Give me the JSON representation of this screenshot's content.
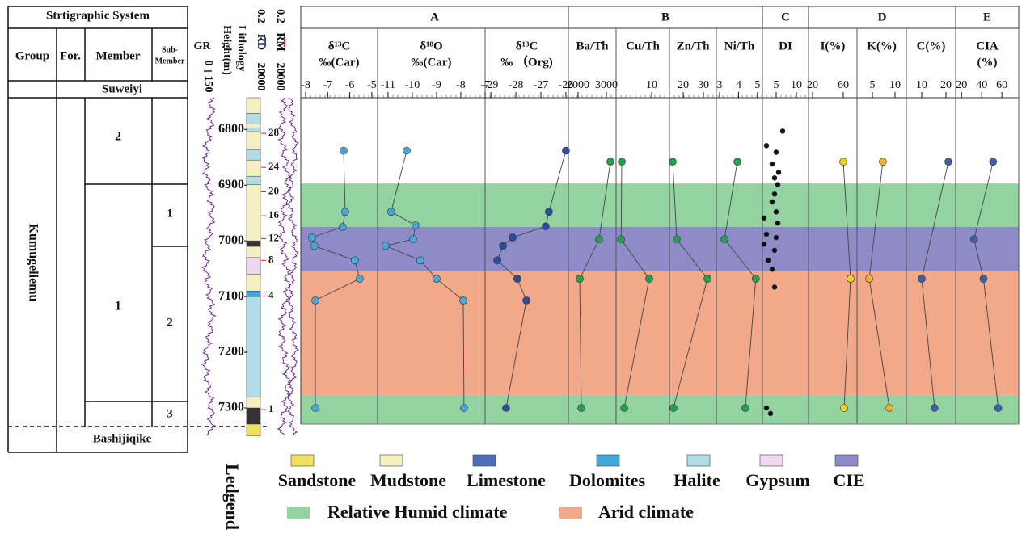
{
  "strat": {
    "title": "Strtigraphic System",
    "headers": [
      "Group",
      "For.",
      "Member",
      [
        "Sub-",
        "Member"
      ]
    ],
    "top": "Suweiyi",
    "bottom": "Bashijiqike",
    "group": "Kumugeliemu",
    "members": [
      "2",
      "1"
    ],
    "submembers": [
      "1",
      "2",
      "3"
    ]
  },
  "logs": {
    "gr": "GR",
    "gr_range": [
      0,
      150
    ],
    "height": "Height(m)",
    "lithology": "Lithology",
    "rd": "RD",
    "rm": "RM",
    "res_range": [
      0.2,
      20000
    ]
  },
  "chart_data": {
    "type": "line",
    "ylim": [
      6743,
      7329
    ],
    "yticks": [
      6800,
      6900,
      7000,
      7100,
      7200,
      7300
    ],
    "zones": [
      {
        "from": 6897,
        "to": 6975,
        "color": "#93d3a2"
      },
      {
        "from": 6975,
        "to": 7054,
        "color": "#8e8cc8"
      },
      {
        "from": 7054,
        "to": 7277,
        "color": "#f2a88a"
      },
      {
        "from": 7277,
        "to": 7329,
        "color": "#93d3a2"
      }
    ],
    "lithology": [
      {
        "from": 6743,
        "to": 7329,
        "color": "#f5f0c0"
      },
      {
        "from": 6771,
        "to": 6790,
        "color": "#b0dde8"
      },
      {
        "from": 6797,
        "to": 6804,
        "color": "#b0dde8"
      },
      {
        "from": 6836,
        "to": 6855,
        "color": "#b0dde8"
      },
      {
        "from": 6884,
        "to": 6899,
        "color": "#b0dde8"
      },
      {
        "from": 7000,
        "to": 7010,
        "color": "#333333"
      },
      {
        "from": 7030,
        "to": 7060,
        "color": "#ecd8ec"
      },
      {
        "from": 7090,
        "to": 7100,
        "color": "#40a8d8"
      },
      {
        "from": 7100,
        "to": 7280,
        "color": "#b0dde8"
      },
      {
        "from": 7300,
        "to": 7329,
        "color": "#333333"
      },
      {
        "from": 7329,
        "to": 7350,
        "color": "#f0e060"
      }
    ],
    "layers": {
      "labels": [
        28,
        24,
        20,
        16,
        12,
        8,
        4,
        1
      ],
      "depths": [
        6807,
        6868,
        6912,
        6955,
        6996,
        7035,
        7099,
        7303
      ]
    },
    "groups": [
      {
        "name": "A",
        "panels": [
          {
            "label": [
              "δ¹³C",
              "‰(Car)"
            ],
            "xlim": [
              -8.22,
              -4.74
            ],
            "xticks": [
              -8,
              -7,
              -6,
              -5
            ],
            "color": "#4aa8d8",
            "lines": true,
            "values": [
              -6.28,
              -6.21,
              -6.32,
              -7.71,
              -7.6,
              -5.77,
              -5.55,
              -7.56,
              -7.56
            ],
            "depths": [
              6838,
              6948,
              6975,
              6994,
              7009,
              7035,
              7068,
              7107,
              7300
            ]
          },
          {
            "label": [
              "δ¹⁸O",
              "‰(Car)"
            ],
            "xlim": [
              -11.43,
              -7
            ],
            "xticks": [
              -11,
              -10,
              -9,
              -8,
              -7
            ],
            "color": "#4aa8d8",
            "lines": true,
            "values": [
              -10.23,
              -10.87,
              -9.87,
              -9.97,
              -11.1,
              -9.67,
              -9.0,
              -7.9,
              -7.87
            ],
            "depths": [
              6838,
              6948,
              6972,
              6997,
              7009,
              7035,
              7068,
              7107,
              7300
            ]
          },
          {
            "label": [
              "δ¹³C",
              "‰ （Org)"
            ],
            "xlim": [
              -29.23,
              -25.9
            ],
            "xticks": [
              -29,
              -28,
              -27,
              -26
            ],
            "color": "#2a4d9c",
            "lines": true,
            "values": [
              -26.0,
              -26.68,
              -26.81,
              -28.13,
              -28.52,
              -28.74,
              -27.94,
              -27.58,
              -28.39
            ],
            "depths": [
              6838,
              6948,
              6974,
              6994,
              7009,
              7035,
              7068,
              7107,
              7300
            ]
          }
        ]
      },
      {
        "name": "B",
        "panels": [
          {
            "label": [
              "Ba/Th"
            ],
            "xlim": [
              1657,
              3343
            ],
            "xticks": [
              2000,
              3000
            ],
            "color": "#22a050",
            "lines": true,
            "values": [
              3143,
              2743,
              2057,
              2114
            ],
            "depths": [
              6858,
              6997,
              7068,
              7300
            ]
          },
          {
            "label": [
              "Cu/Th"
            ],
            "xlim": [
              0,
              15
            ],
            "xticks": [
              10
            ],
            "color": "#22a050",
            "lines": true,
            "values": [
              1.6,
              1.4,
              9.3,
              2.3
            ],
            "depths": [
              6858,
              6997,
              7068,
              7300
            ]
          },
          {
            "label": [
              "Zn/Th"
            ],
            "xlim": [
              13.2,
              36.4
            ],
            "xticks": [
              20,
              30
            ],
            "color": "#22a050",
            "lines": true,
            "values": [
              14.8,
              16.8,
              32,
              15.2
            ],
            "depths": [
              6858,
              6997,
              7068,
              7300
            ]
          },
          {
            "label": [
              "Ni/Th"
            ],
            "xlim": [
              2.83,
              5.26
            ],
            "xticks": [
              3,
              4,
              5
            ],
            "color": "#22a050",
            "lines": true,
            "values": [
              3.94,
              3.26,
              4.91,
              4.36
            ],
            "depths": [
              6858,
              6997,
              7068,
              7300
            ]
          }
        ]
      },
      {
        "name": "C",
        "panels": [
          {
            "label": [
              "DI"
            ],
            "xlim": [
              1.6,
              13
            ],
            "xticks": [
              5,
              10
            ],
            "color": "#111111",
            "lines": false,
            "values": [
              6.6,
              2.6,
              5,
              4,
              5.6,
              4.6,
              5.4,
              4.6,
              4,
              5,
              2,
              5.4,
              2.6,
              5,
              2,
              4.6,
              3,
              4,
              4.6,
              2.6,
              3.6
            ],
            "depths": [
              6803,
              6829,
              6841,
              6862,
              6877,
              6887,
              6899,
              6916,
              6930,
              6948,
              6959,
              6968,
              6988,
              6994,
              7006,
              7017,
              7035,
              7051,
              7083,
              7300,
              7310
            ]
          }
        ]
      },
      {
        "name": "D",
        "panels": [
          {
            "label": [
              "I(%)"
            ],
            "xlim": [
              14.7,
              77.9
            ],
            "xticks": [
              20,
              60
            ],
            "color": "#f0d020",
            "lines": true,
            "values": [
              60,
              69.5,
              61
            ],
            "depths": [
              6858,
              7068,
              7300
            ]
          },
          {
            "label": [
              "K(%)"
            ],
            "xlim": [
              1.6,
              12.5
            ],
            "xticks": [
              5,
              10
            ],
            "color": "#f4b030",
            "lines": true,
            "values": [
              7.3,
              4.3,
              8.75
            ],
            "depths": [
              6858,
              7068,
              7300
            ]
          },
          {
            "label": [
              "C(%)"
            ],
            "xlim": [
              3.67,
              24
            ],
            "xticks": [
              10,
              20
            ],
            "color": "#3a60a8",
            "lines": true,
            "values": [
              21,
              10,
              15.3
            ],
            "depths": [
              6858,
              7068,
              7300
            ]
          }
        ]
      },
      {
        "name": "E",
        "panels": [
          {
            "label": [
              "CIA",
              "(%)"
            ],
            "xlim": [
              14.2,
              76.7
            ],
            "xticks": [
              20,
              40,
              60
            ],
            "color": "#3a60a8",
            "lines": true,
            "values": [
              51.3,
              32.4,
              41.8,
              56.4
            ],
            "depths": [
              6858,
              6997,
              7068,
              7300
            ]
          }
        ]
      }
    ],
    "legend": {
      "title": "Ledgend",
      "items": [
        {
          "name": "Sandstone",
          "color": "#f0e060"
        },
        {
          "name": "Mudstone",
          "color": "#f5f0c0"
        },
        {
          "name": "Limestone",
          "color": "#4a6fb8"
        },
        {
          "name": "Dolomites",
          "color": "#40a8d8"
        },
        {
          "name": "Halite",
          "color": "#b0dde8"
        },
        {
          "name": "Gypsum",
          "color": "#f0d8f0"
        },
        {
          "name": "CIE",
          "color": "#8e8cc8"
        }
      ],
      "climates": [
        {
          "name": "Relative Humid climate",
          "color": "#93d3a2"
        },
        {
          "name": "Arid climate",
          "color": "#f2a88a"
        }
      ]
    }
  }
}
